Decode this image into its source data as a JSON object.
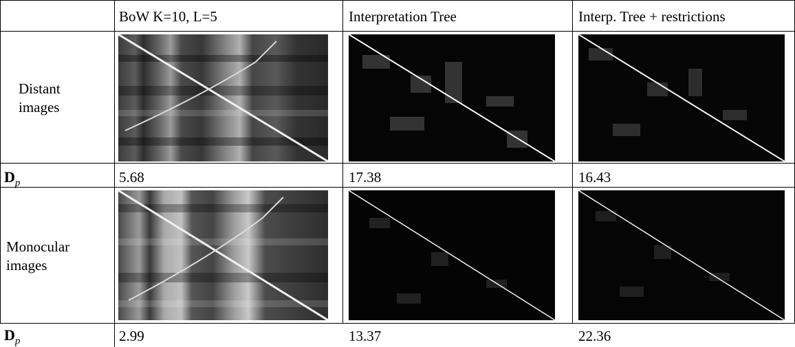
{
  "header": {
    "col1": "BoW K=10, L=5",
    "col2": "Interpretation Tree",
    "col3": "Interp. Tree + restrictions"
  },
  "rows": [
    {
      "label_line1": "Distant",
      "label_line2": "images"
    },
    {
      "label_line1": "Monocular",
      "label_line2": "images"
    }
  ],
  "metric_rows": [
    {
      "label_main": "D",
      "label_sub": "p",
      "values": [
        "5.68",
        "17.38",
        "16.43"
      ]
    },
    {
      "label_main": "D",
      "label_sub": "p",
      "values": [
        "2.99",
        "13.37",
        "22.36"
      ]
    }
  ],
  "images": {
    "distant": [
      "bow-similarity-matrix",
      "interpretation-tree-similarity-matrix",
      "restricted-tree-similarity-matrix"
    ],
    "monocular": [
      "bow-similarity-matrix",
      "interpretation-tree-similarity-matrix",
      "restricted-tree-similarity-matrix"
    ]
  }
}
